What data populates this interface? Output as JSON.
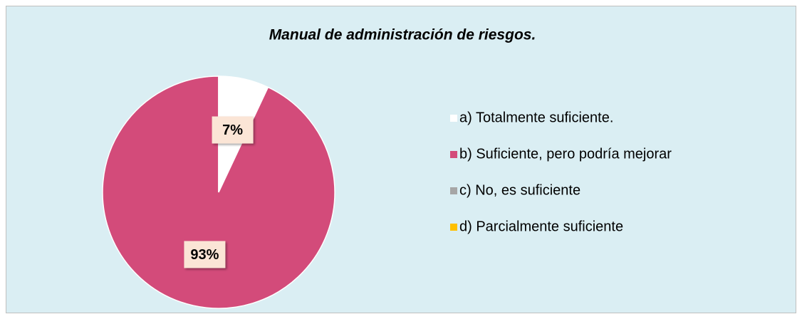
{
  "chart_data": {
    "type": "pie",
    "title": "Manual de administración de riesgos.",
    "categories": [
      "a) Totalmente suficiente.",
      "b) Suficiente, pero podría mejorar",
      "c) No, es suficiente",
      "d) Parcialmente suficiente"
    ],
    "values": [
      7,
      93,
      0,
      0
    ],
    "value_labels": [
      "7%",
      "93%",
      null,
      null
    ],
    "colors": [
      "#ffffff",
      "#d34b7a",
      "#a6a6a6",
      "#ffc000"
    ],
    "legend": "right"
  }
}
